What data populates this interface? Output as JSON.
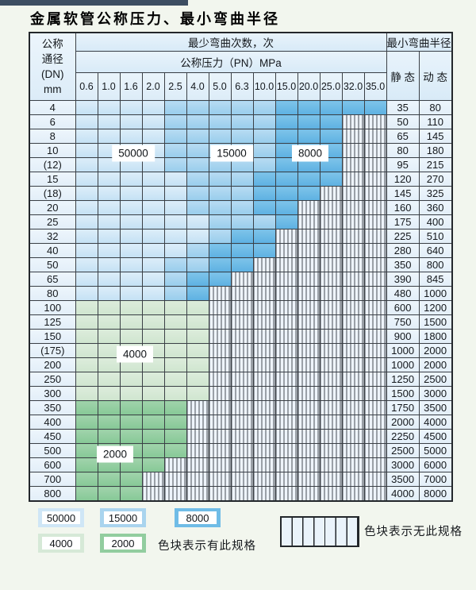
{
  "page": {
    "title": "金属软管公称压力、最小弯曲半径"
  },
  "table": {
    "dn_header_lines": [
      "公称",
      "通径",
      "(DN)",
      "mm"
    ],
    "bend_cycles_header": "最少弯曲次数，次",
    "pressure_header": "公称压力（PN）MPa",
    "min_radius_header": "最小弯曲半径",
    "static_header": "静 态",
    "dynamic_header": "动 态",
    "pressure_columns": [
      "0.6",
      "1.0",
      "1.6",
      "2.0",
      "2.5",
      "4.0",
      "5.0",
      "6.3",
      "10.0",
      "15.0",
      "20.0",
      "25.0",
      "32.0",
      "35.0"
    ],
    "zone_codes": {
      "L": "50000",
      "M": "15000",
      "D": "8000",
      "G": "4000",
      "E": "2000",
      "H": "no-spec"
    },
    "rows": [
      {
        "dn": "4",
        "zones": "LLLLMMMMMDDDDD",
        "static": "35",
        "dynamic": "80"
      },
      {
        "dn": "6",
        "zones": "LLLLMMMMMDDDHH",
        "static": "50",
        "dynamic": "110"
      },
      {
        "dn": "8",
        "zones": "LLLLMMMMMDDDHH",
        "static": "65",
        "dynamic": "145"
      },
      {
        "dn": "10",
        "zones": "LLLLMMMMMDDDHH",
        "static": "80",
        "dynamic": "180"
      },
      {
        "dn": "(12)",
        "zones": "LLLLMMMMMDDDHH",
        "static": "95",
        "dynamic": "215"
      },
      {
        "dn": "15",
        "zones": "LLLLLMMMDDDDHH",
        "static": "120",
        "dynamic": "270"
      },
      {
        "dn": "(18)",
        "zones": "LLLLLMMMDDDHHH",
        "static": "145",
        "dynamic": "325"
      },
      {
        "dn": "20",
        "zones": "LLLLLMMMDDHHHH",
        "static": "160",
        "dynamic": "360"
      },
      {
        "dn": "25",
        "zones": "LLLLLLMMMDHHHH",
        "static": "175",
        "dynamic": "400"
      },
      {
        "dn": "32",
        "zones": "LLLLLLMDDHHHHH",
        "static": "225",
        "dynamic": "510"
      },
      {
        "dn": "40",
        "zones": "LLLLLMDDDHHHHH",
        "static": "280",
        "dynamic": "640"
      },
      {
        "dn": "50",
        "zones": "LLLLMMDDHHHHHH",
        "static": "350",
        "dynamic": "800"
      },
      {
        "dn": "65",
        "zones": "LLLLMDDHHHHHHH",
        "static": "390",
        "dynamic": "845"
      },
      {
        "dn": "80",
        "zones": "LLLLMDHHHHHHHH",
        "static": "480",
        "dynamic": "1000"
      },
      {
        "dn": "100",
        "zones": "GGGGGGHHHHHHHH",
        "static": "600",
        "dynamic": "1200"
      },
      {
        "dn": "125",
        "zones": "GGGGGGHHHHHHHH",
        "static": "750",
        "dynamic": "1500"
      },
      {
        "dn": "150",
        "zones": "GGGGGGHHHHHHHH",
        "static": "900",
        "dynamic": "1800"
      },
      {
        "dn": "(175)",
        "zones": "GGGGGGHHHHHHHH",
        "static": "1000",
        "dynamic": "2000"
      },
      {
        "dn": "200",
        "zones": "GGGGGGHHHHHHHH",
        "static": "1000",
        "dynamic": "2000"
      },
      {
        "dn": "250",
        "zones": "GGGGGGHHHHHHHH",
        "static": "1250",
        "dynamic": "2500"
      },
      {
        "dn": "300",
        "zones": "GGGGGGHHHHHHHH",
        "static": "1500",
        "dynamic": "3000"
      },
      {
        "dn": "350",
        "zones": "EEEEEHHHHHHHHH",
        "static": "1750",
        "dynamic": "3500"
      },
      {
        "dn": "400",
        "zones": "EEEEEHHHHHHHHH",
        "static": "2000",
        "dynamic": "4000"
      },
      {
        "dn": "450",
        "zones": "EEEEEHHHHHHHHH",
        "static": "2250",
        "dynamic": "4500"
      },
      {
        "dn": "500",
        "zones": "EEEEEHHHHHHHHH",
        "static": "2500",
        "dynamic": "5000"
      },
      {
        "dn": "600",
        "zones": "EEEEHHHHHHHHHH",
        "static": "3000",
        "dynamic": "6000"
      },
      {
        "dn": "700",
        "zones": "EEEHHHHHHHHHHH",
        "static": "3500",
        "dynamic": "7000"
      },
      {
        "dn": "800",
        "zones": "EEEHHHHHHHHHHH",
        "static": "4000",
        "dynamic": "8000"
      }
    ]
  },
  "overlays": {
    "v50000": "50000",
    "v15000": "15000",
    "v8000": "8000",
    "v4000": "4000",
    "v2000": "2000"
  },
  "legend": {
    "items": [
      {
        "value": "50000",
        "zone": "L"
      },
      {
        "value": "15000",
        "zone": "M"
      },
      {
        "value": "8000",
        "zone": "D"
      },
      {
        "value": "4000",
        "zone": "G"
      },
      {
        "value": "2000",
        "zone": "E"
      }
    ],
    "has_spec_note": "色块表示有此规格",
    "no_spec_note": "色块表示无此规格"
  },
  "colors": {
    "cycles_50000": "#cfe6f6",
    "cycles_15000": "#a9d4ee",
    "cycles_8000": "#6fbce6",
    "cycles_4000": "#d6e9d7",
    "cycles_2000": "#92cd9f",
    "hatch_bg": "#eef4fb",
    "header_bg": "#ddedf8",
    "grid": "#3b4046"
  }
}
